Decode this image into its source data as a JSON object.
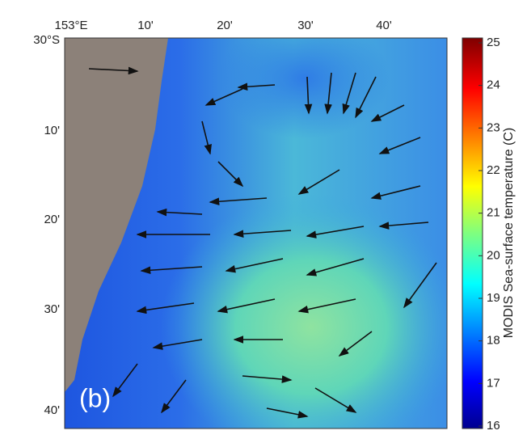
{
  "map": {
    "x_labels": [
      "153°E",
      "10'",
      "20'",
      "30'",
      "40'"
    ],
    "y_labels": [
      "30°S",
      "10'",
      "20'",
      "30'",
      "40'"
    ],
    "panel_label": "(b)"
  },
  "colorbar": {
    "label": "MODIS Sea-surface temperature (C)",
    "ticks": [
      16,
      17,
      18,
      19,
      20,
      21,
      22,
      23,
      24,
      25
    ]
  }
}
